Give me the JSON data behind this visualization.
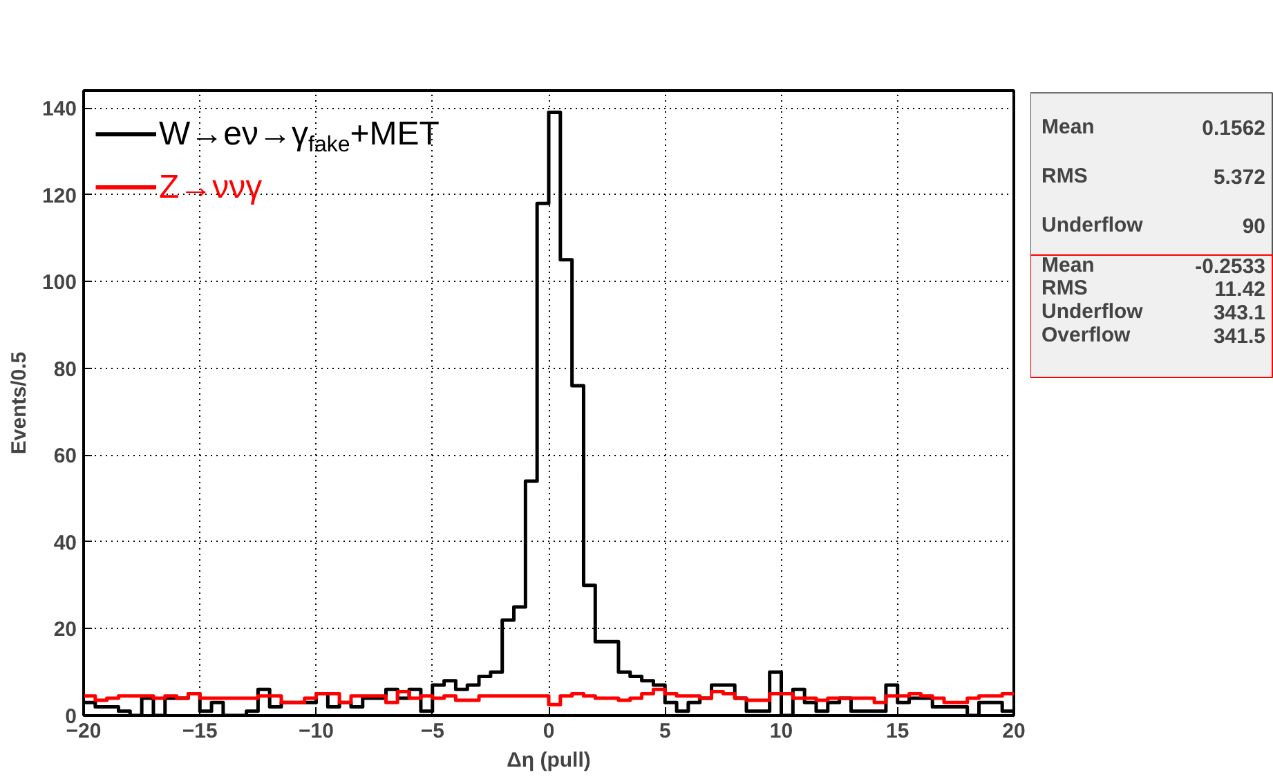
{
  "chart_data": {
    "type": "histogram",
    "xlabel": "Δη (pull)",
    "ylabel": "Events/0.5",
    "bins": [
      -20,
      -19.5,
      -19,
      -18.5,
      -18,
      -17.5,
      -17,
      -16.5,
      -16,
      -15.5,
      -15,
      -14.5,
      -14,
      -13.5,
      -13,
      -12.5,
      -12,
      -11.5,
      -11,
      -10.5,
      -10,
      -9.5,
      -9,
      -8.5,
      -8,
      -7.5,
      -7,
      -6.5,
      -6,
      -5.5,
      -5,
      -4.5,
      -4,
      -3.5,
      -3,
      -2.5,
      -2,
      -1.5,
      -1,
      -0.5,
      0,
      0.5,
      1,
      1.5,
      2,
      2.5,
      3,
      3.5,
      4,
      4.5,
      5,
      5.5,
      6,
      6.5,
      7,
      7.5,
      8,
      8.5,
      9,
      9.5,
      10,
      10.5,
      11,
      11.5,
      12,
      12.5,
      13,
      13.5,
      14,
      14.5,
      15,
      15.5,
      16,
      16.5,
      17,
      17.5,
      18,
      18.5,
      19,
      19.5,
      20
    ],
    "series": [
      {
        "name": "W→eν→γ$_{fake}$+MET",
        "color": "#000000",
        "values": [
          3,
          2,
          2,
          1,
          0,
          4,
          0,
          4,
          4,
          5,
          1,
          3,
          0,
          0,
          1,
          6,
          2,
          3,
          3,
          3,
          5,
          2,
          3,
          2,
          4,
          4,
          6,
          4,
          6,
          1,
          7,
          8,
          6,
          7,
          9,
          10,
          22,
          25,
          54,
          118,
          139,
          105,
          76,
          30,
          17,
          17,
          10,
          9,
          8,
          7,
          3,
          1,
          3,
          4,
          7,
          7,
          4,
          1,
          1,
          10,
          0,
          6,
          3,
          1,
          3,
          4,
          1,
          1,
          1,
          7,
          3,
          4,
          4,
          2,
          2,
          2,
          0,
          3,
          3,
          1
        ]
      },
      {
        "name": "Z→ννγ",
        "color": "#ff0000",
        "values": [
          4.5,
          3.5,
          4,
          4.5,
          4.5,
          4.5,
          4,
          4.5,
          4,
          5,
          4,
          4,
          4,
          4,
          4,
          4.5,
          4.5,
          3,
          3,
          4,
          5,
          5,
          3,
          4.5,
          4.5,
          4.5,
          3,
          5.5,
          4,
          4.5,
          4,
          4.5,
          3.5,
          3.5,
          4.5,
          4.5,
          4.5,
          4.5,
          4.5,
          4.5,
          2.5,
          4.5,
          5,
          4.5,
          4,
          4,
          3.5,
          4,
          5,
          6,
          5,
          4.5,
          4.5,
          4,
          5.5,
          5,
          4,
          3.5,
          3.5,
          5,
          5,
          4,
          4,
          3.5,
          4,
          4,
          4,
          4,
          3,
          4.5,
          4.5,
          5,
          4.5,
          4,
          3,
          3,
          4,
          4.5,
          4.5,
          5
        ]
      }
    ],
    "xlim": [
      -20,
      20
    ],
    "xticks": [
      -20,
      -15,
      -10,
      -5,
      0,
      5,
      10,
      15,
      20
    ],
    "ylim": [
      0,
      144
    ],
    "yticks": [
      0,
      20,
      40,
      60,
      80,
      100,
      120,
      140
    ],
    "grid": true,
    "legend": "top left",
    "annotations": [
      "Mean 0.1562",
      "RMS 5.372",
      "Underflow 90",
      "Mean -0.2533",
      "RMS 11.42",
      "Underflow 343.1",
      "Overflow 341.5"
    ]
  }
}
